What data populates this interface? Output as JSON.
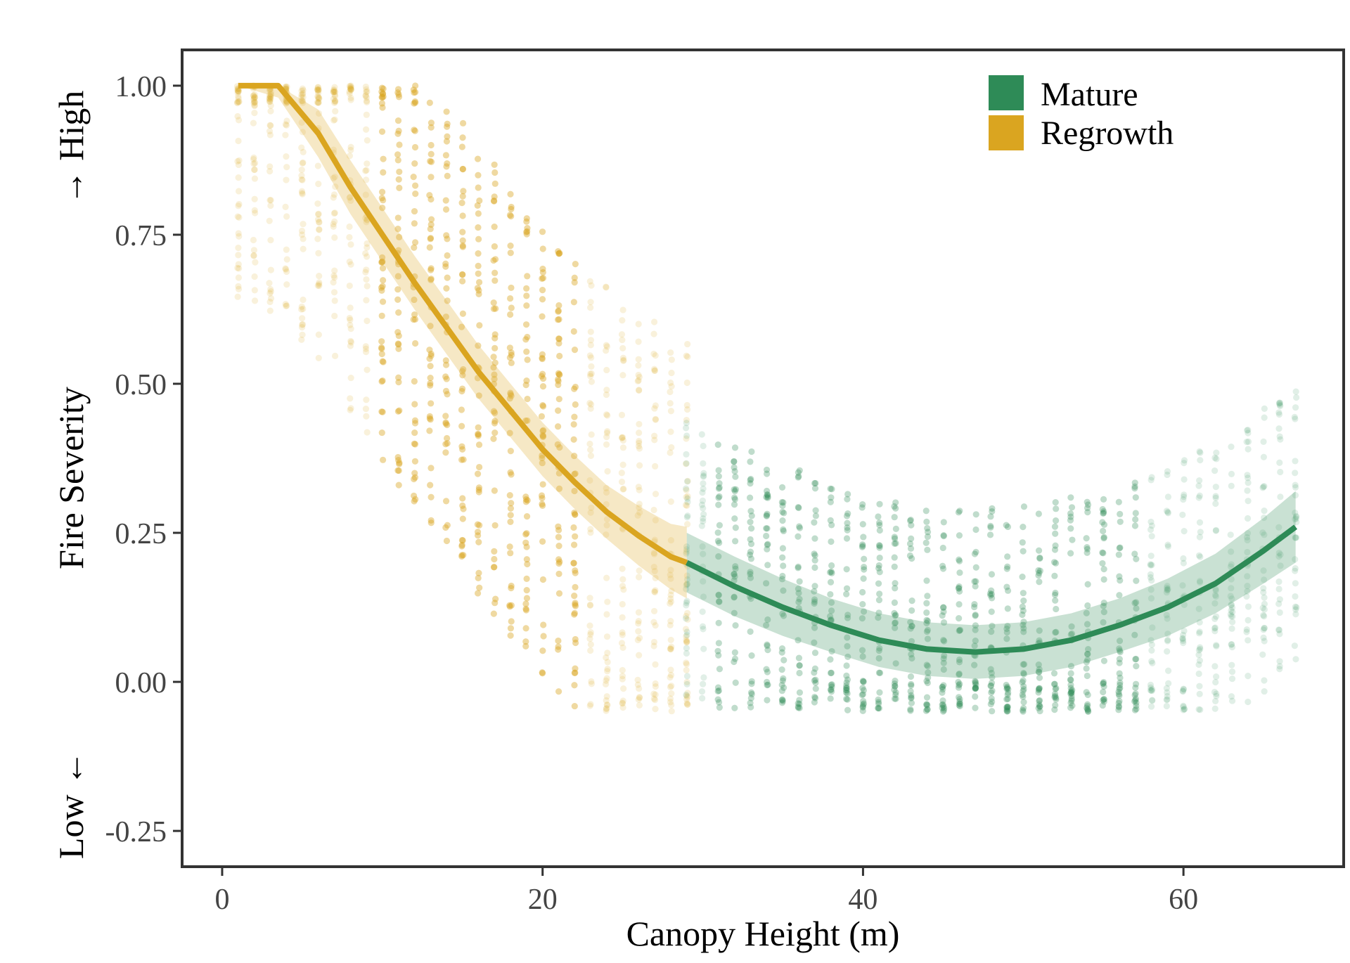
{
  "chart_data": {
    "type": "scatter",
    "xlabel": "Canopy Height (m)",
    "ylabel": "Fire Severity",
    "y_high_label": "→ High",
    "y_low_label": "Low ←",
    "xlim": [
      -2.5,
      70
    ],
    "ylim": [
      -0.31,
      1.06
    ],
    "x_ticks": [
      0,
      20,
      40,
      60
    ],
    "x_tick_labels": [
      "0",
      "20",
      "40",
      "60"
    ],
    "y_ticks": [
      -0.25,
      0,
      0.25,
      0.5,
      0.75,
      1.0
    ],
    "y_tick_labels": [
      "-0.25",
      "0.00",
      "0.25",
      "0.50",
      "0.75",
      "1.00"
    ],
    "grid": false,
    "legend": {
      "position": "top-right",
      "entries": [
        {
          "label": "Mature",
          "color": "#2e8b57"
        },
        {
          "label": "Regrowth",
          "color": "#daa520"
        }
      ]
    },
    "series": [
      {
        "name": "Regrowth",
        "color": "#daa520",
        "x_range": [
          1,
          29
        ],
        "fit": {
          "x": [
            1,
            3.5,
            6,
            8,
            10,
            12,
            14,
            16,
            18,
            20,
            22,
            24,
            26,
            28,
            29
          ],
          "y": [
            1.0,
            1.0,
            0.92,
            0.83,
            0.75,
            0.67,
            0.595,
            0.52,
            0.455,
            0.39,
            0.335,
            0.285,
            0.245,
            0.21,
            0.2
          ],
          "ci": [
            0.0,
            0.02,
            0.04,
            0.045,
            0.045,
            0.045,
            0.045,
            0.045,
            0.045,
            0.045,
            0.045,
            0.045,
            0.05,
            0.055,
            0.06
          ]
        }
      },
      {
        "name": "Mature",
        "color": "#2e8b57",
        "x_range": [
          29,
          67
        ],
        "fit": {
          "x": [
            29,
            32,
            35,
            38,
            41,
            44,
            47,
            50,
            53,
            56,
            59,
            62,
            65,
            67
          ],
          "y": [
            0.2,
            0.16,
            0.125,
            0.095,
            0.07,
            0.055,
            0.05,
            0.055,
            0.07,
            0.095,
            0.125,
            0.165,
            0.22,
            0.26
          ],
          "ci": [
            0.05,
            0.05,
            0.048,
            0.045,
            0.045,
            0.045,
            0.045,
            0.045,
            0.045,
            0.045,
            0.048,
            0.05,
            0.055,
            0.06
          ]
        }
      }
    ]
  }
}
